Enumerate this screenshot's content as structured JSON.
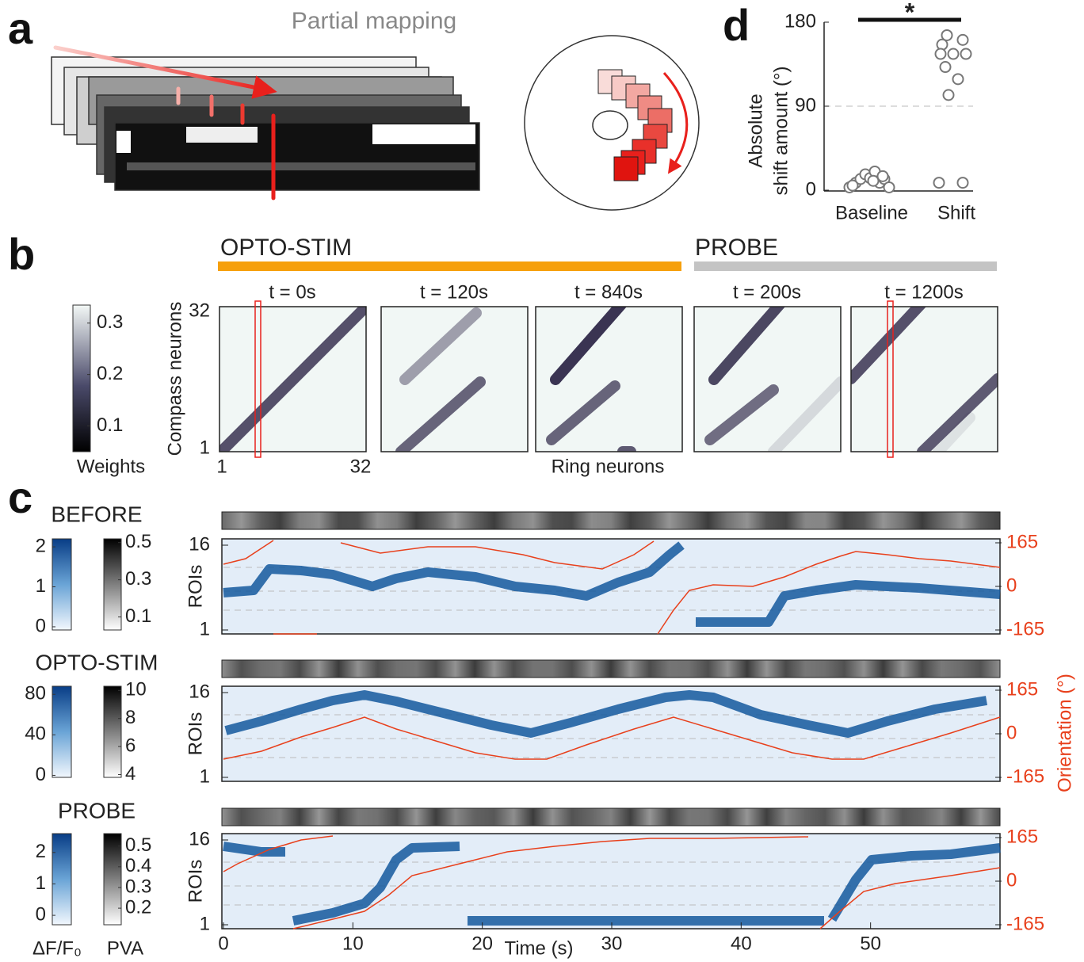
{
  "panel_a": {
    "letter": "a",
    "title": "Partial mapping"
  },
  "panel_b": {
    "letter": "b",
    "opto_label": "OPTO-STIM",
    "probe_label": "PROBE",
    "colorbar": {
      "ticks": [
        0.1,
        0.2,
        0.3
      ],
      "lim": [
        0.05,
        0.335
      ],
      "label": "Weights"
    },
    "y_label": "Compass neurons",
    "x_label": "Ring neurons",
    "yticks": [
      1,
      32
    ],
    "xticks": [
      1,
      32
    ],
    "panels": [
      "t = 0s",
      "t = 120s",
      "t = 840s",
      "t = 200s",
      "t = 1200s"
    ]
  },
  "panel_c": {
    "letter": "c",
    "y_label": "ROIs",
    "y2_label": "Orientation (°)",
    "x_label": "Time (s)",
    "xlim": [
      0,
      60
    ],
    "xticks": [
      0,
      10,
      20,
      30,
      40,
      50
    ],
    "ylim": [
      1,
      16
    ],
    "yticks": [
      1,
      16
    ],
    "y2lim": [
      -180,
      180
    ],
    "y2ticks": [
      -165,
      0,
      165
    ],
    "dff_label": "ΔF/F₀",
    "pva_label": "PVA",
    "rows": [
      {
        "name": "BEFORE",
        "dff_lim": [
          -0.08,
          2.2
        ],
        "dff_ticks": [
          0,
          1,
          2
        ],
        "pva_lim": [
          0.03,
          0.52
        ],
        "pva_ticks": [
          0.1,
          0.3,
          0.5
        ]
      },
      {
        "name": "OPTO-STIM",
        "dff_lim": [
          -2,
          88
        ],
        "dff_ticks": [
          0,
          40,
          80
        ],
        "pva_lim": [
          3.8,
          10.3
        ],
        "pva_ticks": [
          4,
          6,
          8,
          10
        ]
      },
      {
        "name": "PROBE",
        "dff_lim": [
          -0.3,
          2.6
        ],
        "dff_ticks": [
          0,
          1,
          2
        ],
        "pva_lim": [
          0.12,
          0.56
        ],
        "pva_ticks": [
          0.2,
          0.3,
          0.4,
          0.5
        ]
      }
    ]
  },
  "chart_data": {
    "type": "scatter",
    "letter": "d",
    "y_label": [
      "Absolute",
      "shift amount (°)"
    ],
    "categories": [
      "Baseline",
      "Shift"
    ],
    "series": [
      {
        "values": [
          3,
          8,
          12,
          17,
          13,
          20,
          8,
          12,
          3,
          5,
          10,
          15
        ]
      },
      {
        "values": [
          166,
          161,
          156,
          146,
          146,
          146,
          132,
          119,
          102,
          8,
          8
        ]
      }
    ],
    "ylim": [
      0,
      180
    ],
    "yticks": [
      0,
      90,
      180
    ],
    "reference_line": 90,
    "annotation": "*"
  }
}
